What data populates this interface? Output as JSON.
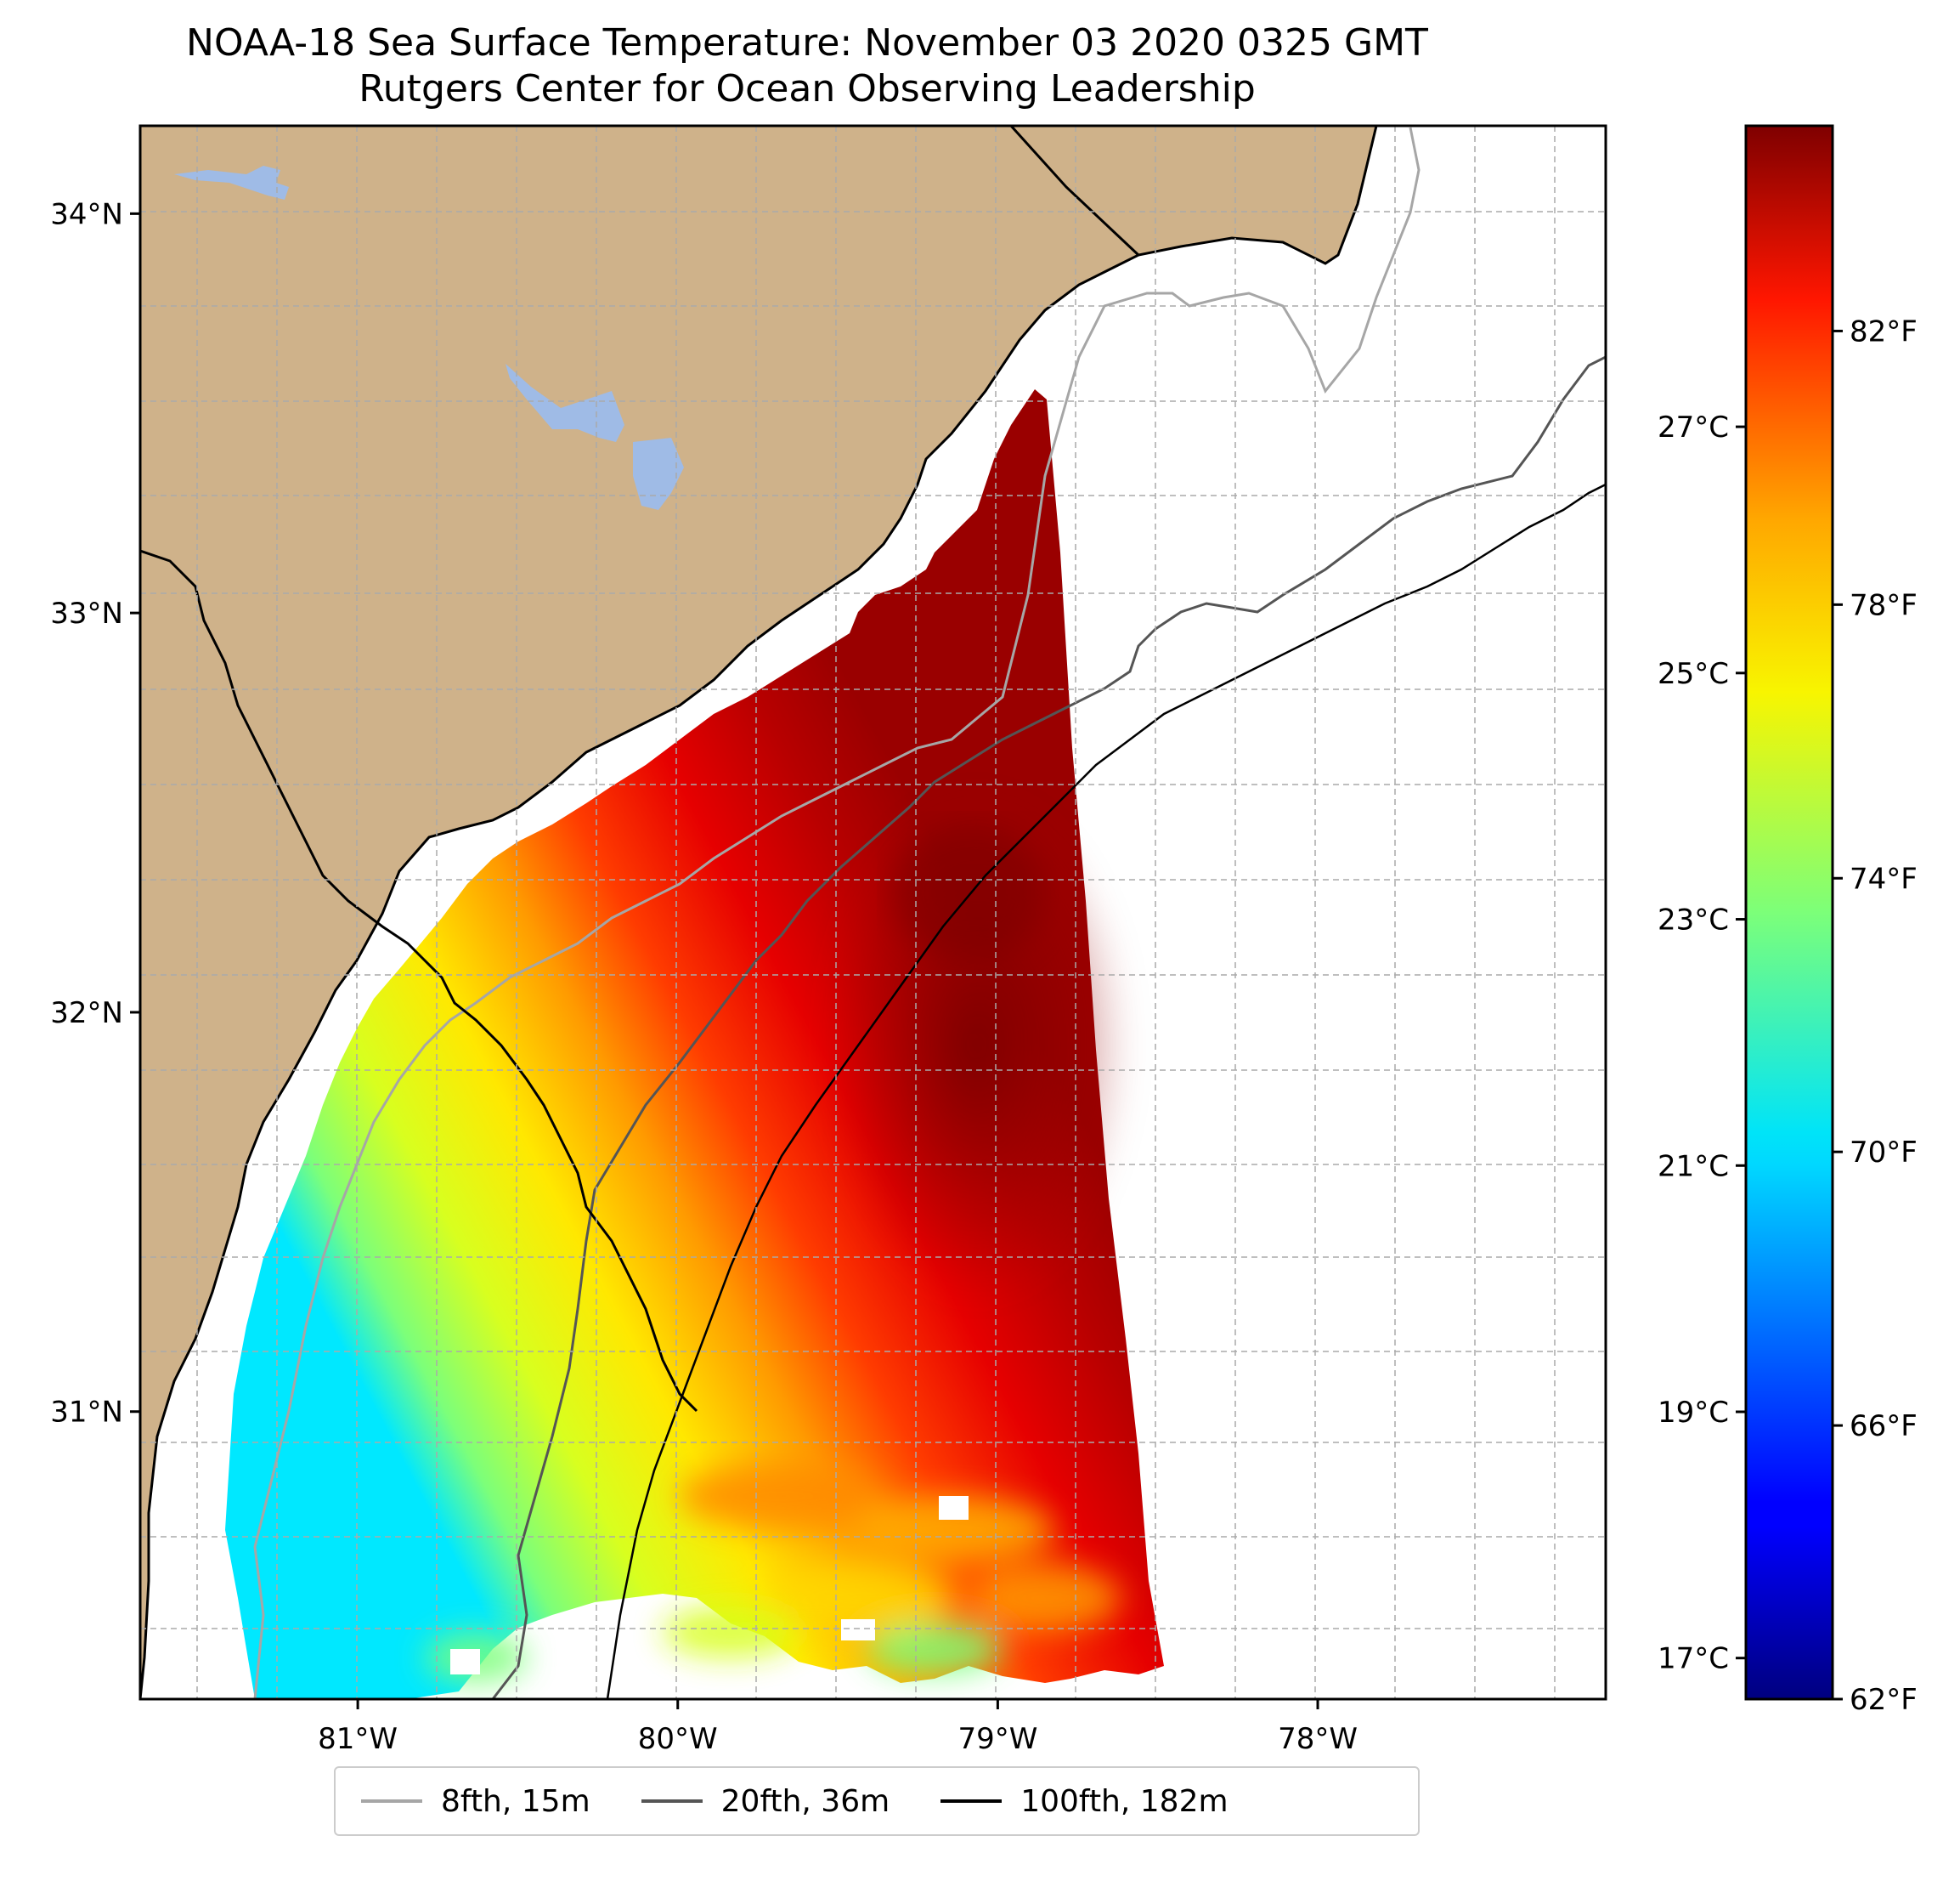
{
  "title_line1": "NOAA-18 Sea Surface Temperature: November 03 2020 0325 GMT",
  "title_line2": "Rutgers Center for Ocean Observing Leadership",
  "map": {
    "lat_ticks": [
      {
        "value": 34,
        "label": "34°N"
      },
      {
        "value": 33,
        "label": "33°N"
      },
      {
        "value": 32,
        "label": "32°N"
      },
      {
        "value": 31,
        "label": "31°N"
      }
    ],
    "lon_ticks": [
      {
        "value": -81,
        "label": "81°W"
      },
      {
        "value": -80,
        "label": "80°W"
      },
      {
        "value": -79,
        "label": "79°W"
      },
      {
        "value": -78,
        "label": "78°W"
      }
    ],
    "extent": {
      "lon_min": -81.68,
      "lon_max": -77.1,
      "lat_min": 30.28,
      "lat_max": 34.22
    },
    "land_color": "#cfb28a",
    "lake_color": "#9fbbe6",
    "grid": "on, dashed"
  },
  "colorbar": {
    "colormap": "jet",
    "min_f": 62,
    "max_f": 85,
    "fahrenheit_ticks": [
      {
        "value": 82,
        "label": "82°F"
      },
      {
        "value": 78,
        "label": "78°F"
      },
      {
        "value": 74,
        "label": "74°F"
      },
      {
        "value": 70,
        "label": "70°F"
      },
      {
        "value": 66,
        "label": "66°F"
      },
      {
        "value": 62,
        "label": "62°F"
      }
    ],
    "celsius_ticks": [
      {
        "value": 27,
        "label": "27°C"
      },
      {
        "value": 25,
        "label": "25°C"
      },
      {
        "value": 23,
        "label": "23°C"
      },
      {
        "value": 21,
        "label": "21°C"
      },
      {
        "value": 19,
        "label": "19°C"
      },
      {
        "value": 17,
        "label": "17°C"
      }
    ]
  },
  "legend": [
    {
      "label": "8fth, 15m",
      "color": "#a6a6a6"
    },
    {
      "label": "20fth, 36m",
      "color": "#555555"
    },
    {
      "label": "100fth, 182m",
      "color": "#000000"
    }
  ]
}
